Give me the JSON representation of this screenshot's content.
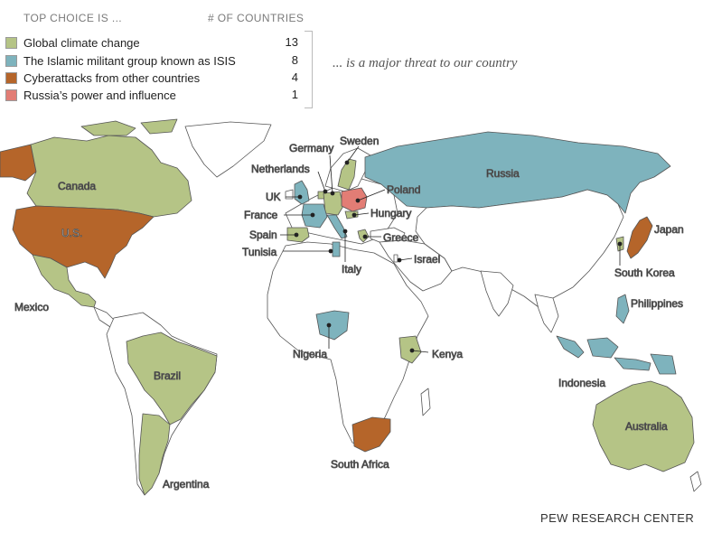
{
  "legend": {
    "header_left": "TOP CHOICE IS ...",
    "header_right": "# OF COUNTRIES",
    "items": [
      {
        "label": "Global climate change",
        "count": "13",
        "color": "#b5c486"
      },
      {
        "label": "The Islamic militant group known as ISIS",
        "count": "8",
        "color": "#7eb3bd"
      },
      {
        "label": "Cyberattacks from other countries",
        "count": "4",
        "color": "#b5652a"
      },
      {
        "label": "Russia’s power and influence",
        "count": "1",
        "color": "#e27d75"
      }
    ]
  },
  "note": "... is a major threat to our country",
  "colors": {
    "land": "#ffffff",
    "border": "#555555",
    "climate": "#b5c486",
    "isis": "#7eb3bd",
    "cyber": "#b5652a",
    "russia_influence": "#e27d75"
  },
  "map": {
    "labels": {
      "canada": "Canada",
      "us": "U.S.",
      "mexico": "Mexico",
      "brazil": "Brazil",
      "argentina": "Argentina",
      "germany": "Germany",
      "sweden": "Sweden",
      "netherlands": "Netherlands",
      "uk": "UK",
      "france": "France",
      "spain": "Spain",
      "tunisia": "Tunisia",
      "italy": "Italy",
      "poland": "Poland",
      "hungary": "Hungary",
      "greece": "Greece",
      "israel": "Israel",
      "russia": "Russia",
      "japan": "Japan",
      "south_korea": "South Korea",
      "philippines": "Philippines",
      "indonesia": "Indonesia",
      "australia": "Australia",
      "nigeria": "Nigeria",
      "kenya": "Kenya",
      "south_africa": "South Africa"
    }
  },
  "credit": "PEW RESEARCH CENTER"
}
